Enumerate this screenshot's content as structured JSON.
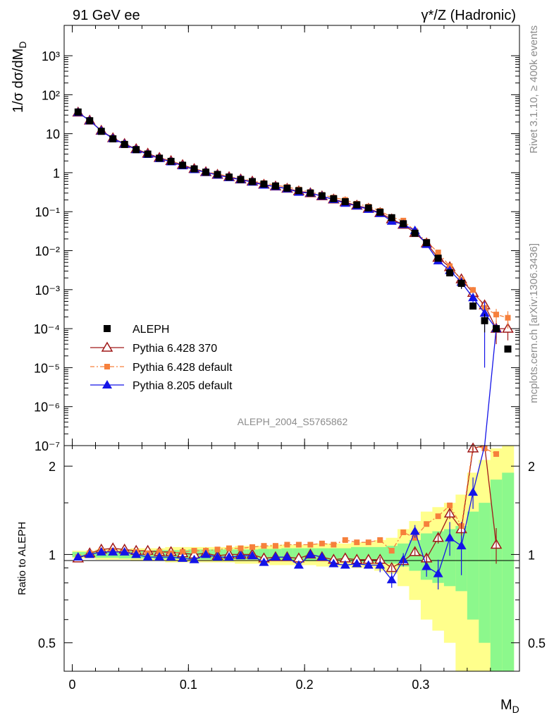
{
  "header": {
    "left": "91 GeV ee",
    "right": "γ*/Z (Hadronic)"
  },
  "side": {
    "rivet": "Rivet 3.1.10, ≥ 400k events",
    "mcplots": "mcplots.cern.ch [arXiv:1306.3436]"
  },
  "analysis_id": "ALEPH_2004_S5765862",
  "chart_data": [
    {
      "type": "scatter",
      "title": "1/σ dσ/dM_D",
      "ylabel": "1/σ  dσ/dM_D",
      "xlabel": "M_D",
      "yscale": "log",
      "ylim": [
        1e-07,
        6000
      ],
      "xlim": [
        -0.007,
        0.385
      ],
      "x_ticks": [
        "0",
        "0.1",
        "0.2",
        "0.3"
      ],
      "y_ticks": [
        "10³",
        "10²",
        "10",
        "1",
        "10⁻¹",
        "10⁻²",
        "10⁻³",
        "10⁻⁴",
        "10⁻⁵",
        "10⁻⁶",
        "10⁻⁷"
      ],
      "legend_position": "bottom-left",
      "x": [
        0.005,
        0.015,
        0.025,
        0.035,
        0.045,
        0.055,
        0.065,
        0.075,
        0.085,
        0.095,
        0.105,
        0.115,
        0.125,
        0.135,
        0.145,
        0.155,
        0.165,
        0.175,
        0.185,
        0.195,
        0.205,
        0.215,
        0.225,
        0.235,
        0.245,
        0.255,
        0.265,
        0.275,
        0.285,
        0.295,
        0.305,
        0.315,
        0.325,
        0.335,
        0.345,
        0.355,
        0.365,
        0.375
      ],
      "series": [
        {
          "name": "ALEPH",
          "color": "#000000",
          "marker": "square",
          "values": [
            36,
            21.5,
            11.5,
            7.4,
            5.3,
            3.9,
            3.0,
            2.35,
            1.95,
            1.55,
            1.25,
            1.03,
            0.9,
            0.77,
            0.67,
            0.59,
            0.51,
            0.455,
            0.4,
            0.345,
            0.3,
            0.255,
            0.215,
            0.18,
            0.15,
            0.125,
            0.097,
            0.07,
            0.049,
            0.028,
            0.016,
            0.0064,
            0.0027,
            0.00145,
            0.00038,
            0.00016,
            0.0001,
            3e-05
          ]
        },
        {
          "name": "Pythia 6.428 370",
          "color": "#a01919",
          "marker": "open-triangle",
          "values": [
            35,
            21.8,
            12.0,
            7.7,
            5.5,
            4.05,
            3.1,
            2.42,
            2.0,
            1.58,
            1.25,
            1.04,
            0.89,
            0.775,
            0.675,
            0.595,
            0.495,
            0.445,
            0.39,
            0.335,
            0.3,
            0.25,
            0.207,
            0.175,
            0.144,
            0.12,
            0.093,
            0.064,
            0.0465,
            0.0285,
            0.0155,
            0.0066,
            0.0038,
            0.00185,
            0.00083,
            0.0004,
            0.0001,
            0.0001
          ]
        },
        {
          "name": "Pythia 6.428 default",
          "color": "#f6803c",
          "marker": "square",
          "values": [
            35,
            21.8,
            11.8,
            7.55,
            5.35,
            3.95,
            3.0,
            2.4,
            1.95,
            1.58,
            1.28,
            1.06,
            0.93,
            0.8,
            0.7,
            0.62,
            0.54,
            0.48,
            0.43,
            0.37,
            0.32,
            0.27,
            0.23,
            0.2,
            0.16,
            0.135,
            0.105,
            0.072,
            0.059,
            0.032,
            0.017,
            0.009,
            0.004,
            0.0018,
            0.00098,
            0.00034,
            0.00023,
            0.00019
          ]
        },
        {
          "name": "Pythia 8.205 default",
          "color": "#1414e8",
          "marker": "filled-triangle",
          "values": [
            35,
            21.5,
            11.8,
            7.5,
            5.4,
            3.9,
            2.95,
            2.3,
            1.9,
            1.5,
            1.2,
            1.02,
            0.87,
            0.75,
            0.66,
            0.575,
            0.48,
            0.44,
            0.385,
            0.315,
            0.3,
            0.25,
            0.205,
            0.165,
            0.14,
            0.115,
            0.09,
            0.057,
            0.047,
            0.033,
            0.0145,
            0.0055,
            0.0031,
            0.00155,
            0.00062,
            0.00025,
            0.0001,
            null
          ]
        }
      ],
      "y_errors": {
        "ALEPH": [
          0,
          0,
          0,
          0,
          0,
          0,
          0,
          0,
          0,
          0,
          0,
          0,
          0,
          0,
          0,
          0,
          0,
          0,
          0,
          0,
          0,
          0,
          0,
          0,
          0,
          0,
          0,
          0,
          0,
          0,
          0,
          0.0007,
          0.0004,
          0.0004,
          0,
          8e-05,
          0,
          0
        ],
        "Pythia 6.428 370": [
          0,
          0,
          0,
          0,
          0,
          0,
          0,
          0,
          0,
          0,
          0,
          0,
          0,
          0,
          0,
          0,
          0,
          0,
          0,
          0,
          0,
          0,
          0,
          0,
          0,
          0,
          0,
          0,
          0,
          0,
          0,
          0,
          0,
          0,
          0,
          0,
          6e-05,
          5e-05
        ],
        "Pythia 6.428 default": [
          0,
          0,
          0,
          0,
          0,
          0,
          0,
          0,
          0,
          0,
          0,
          0,
          0,
          0,
          0,
          0,
          0,
          0,
          0,
          0,
          0,
          0,
          0,
          0,
          0,
          0,
          0,
          0,
          0,
          0,
          0,
          0,
          0,
          0,
          0,
          0,
          9e-05,
          9e-05
        ],
        "Pythia 8.205 default": [
          0,
          0,
          0,
          0,
          0,
          0,
          0,
          0,
          0,
          0,
          0,
          0,
          0,
          0,
          0,
          0,
          0,
          0,
          0,
          0,
          0,
          0,
          0,
          0,
          0,
          0,
          0,
          0,
          0,
          0,
          0,
          0.001,
          0.0007,
          0.0005,
          0.0002,
          0.00024,
          0,
          0
        ]
      }
    },
    {
      "type": "line",
      "title": "Ratio to ALEPH",
      "ylabel": "Ratio to ALEPH",
      "xlabel": "M_D",
      "yscale": "log",
      "ylim": [
        0.4,
        2.35
      ],
      "xlim": [
        -0.007,
        0.385
      ],
      "y_ticks": [
        "0.5",
        "1",
        "2"
      ],
      "reference_line": 1,
      "bands": {
        "green_half_width": [
          0.02,
          0.02,
          0.025,
          0.025,
          0.03,
          0.03,
          0.03,
          0.035,
          0.035,
          0.035,
          0.04,
          0.04,
          0.04,
          0.04,
          0.04,
          0.04,
          0.045,
          0.045,
          0.05,
          0.05,
          0.05,
          0.05,
          0.05,
          0.05,
          0.06,
          0.06,
          0.06,
          0.07,
          0.09,
          0.12,
          0.18,
          0.2,
          0.22,
          0.25,
          0.4,
          0.5,
          0.8,
          0.9
        ],
        "yellow_half_width": [
          0.03,
          0.03,
          0.04,
          0.04,
          0.04,
          0.05,
          0.05,
          0.05,
          0.06,
          0.06,
          0.06,
          0.06,
          0.06,
          0.06,
          0.07,
          0.07,
          0.07,
          0.08,
          0.08,
          0.08,
          0.08,
          0.09,
          0.09,
          0.09,
          0.1,
          0.1,
          0.12,
          0.14,
          0.22,
          0.3,
          0.4,
          0.45,
          0.5,
          0.6,
          0.9,
          1.1,
          1.3,
          1.4
        ]
      },
      "series": [
        {
          "name": "Pythia 6.428 370",
          "color": "#a01919",
          "values": [
            0.97,
            1.01,
            1.04,
            1.05,
            1.04,
            1.03,
            1.03,
            1.02,
            1.02,
            1.01,
            1.0,
            1.01,
            0.99,
            1.0,
            1.0,
            1.0,
            0.97,
            0.98,
            0.98,
            0.97,
            1.0,
            0.98,
            0.96,
            0.97,
            0.96,
            0.96,
            0.96,
            0.9,
            0.95,
            1.02,
            0.97,
            1.14,
            1.38,
            1.22,
            2.3,
            2.5,
            1.08,
            null
          ]
        },
        {
          "name": "Pythia 6.428 default",
          "color": "#f6803c",
          "values": [
            0.98,
            1.01,
            1.03,
            1.03,
            1.02,
            1.02,
            1.01,
            1.02,
            1.01,
            1.02,
            1.03,
            1.03,
            1.04,
            1.05,
            1.05,
            1.06,
            1.07,
            1.07,
            1.08,
            1.08,
            1.08,
            1.09,
            1.08,
            1.12,
            1.1,
            1.1,
            1.12,
            1.03,
            1.19,
            1.14,
            1.27,
            1.35,
            1.47,
            1.25,
            2.5,
            2.3,
            2.2,
            null
          ]
        },
        {
          "name": "Pythia 8.205 default",
          "color": "#1414e8",
          "values": [
            0.98,
            1.0,
            1.02,
            1.02,
            1.02,
            1.0,
            0.98,
            0.98,
            0.98,
            0.97,
            0.96,
            1.0,
            0.98,
            0.98,
            0.99,
            0.99,
            0.94,
            0.98,
            0.98,
            0.92,
            1.0,
            0.98,
            0.93,
            0.92,
            0.93,
            0.92,
            0.92,
            0.82,
            0.96,
            1.2,
            0.91,
            0.86,
            1.14,
            1.07,
            1.63,
            null,
            null,
            null
          ]
        }
      ]
    }
  ]
}
